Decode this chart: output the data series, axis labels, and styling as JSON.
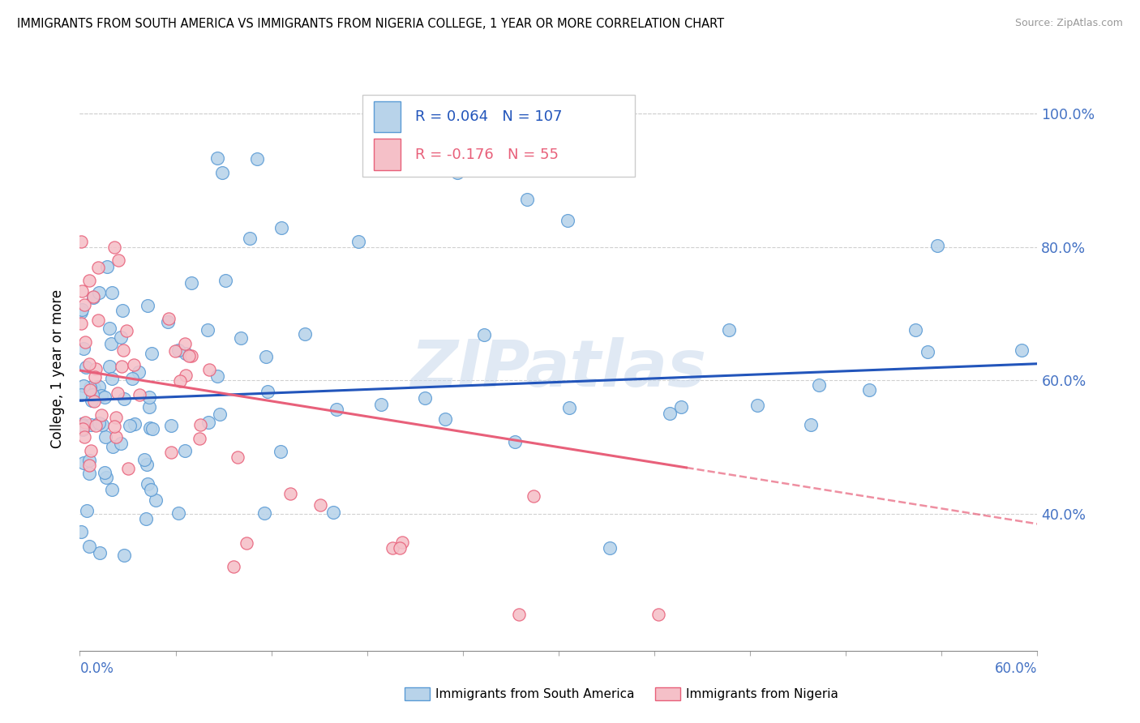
{
  "title": "IMMIGRANTS FROM SOUTH AMERICA VS IMMIGRANTS FROM NIGERIA COLLEGE, 1 YEAR OR MORE CORRELATION CHART",
  "source": "Source: ZipAtlas.com",
  "ylabel": "College, 1 year or more",
  "xmin": 0.0,
  "xmax": 0.6,
  "ymin": 0.195,
  "ymax": 1.04,
  "watermark": "ZIPatlas",
  "ytick_vals": [
    0.4,
    0.6,
    0.8,
    1.0
  ],
  "ytick_labels": [
    "40.0%",
    "60.0%",
    "80.0%",
    "100.0%"
  ],
  "series": [
    {
      "label": "Immigrants from South America",
      "color": "#b8d3ea",
      "edge_color": "#5b9bd5",
      "N": 107,
      "R": 0.064,
      "line_color": "#2255bb",
      "line_style": "solid",
      "trend_x0": 0.0,
      "trend_x1": 0.6,
      "trend_y0": 0.57,
      "trend_y1": 0.625
    },
    {
      "label": "Immigrants from Nigeria",
      "color": "#f5c0c8",
      "edge_color": "#e8607a",
      "N": 55,
      "R": -0.176,
      "line_color": "#e8607a",
      "line_style": "dashed",
      "trend_x0": 0.0,
      "trend_x1": 0.6,
      "trend_y0": 0.615,
      "trend_y1": 0.385
    }
  ],
  "legend": {
    "R_blue": "0.064",
    "N_blue": "107",
    "R_pink": "-0.176",
    "N_pink": "55"
  },
  "title_fontsize": 10.5,
  "axis_label_color": "#4472c4",
  "tick_color": "#4472c4",
  "grid_color": "#d0d0d0"
}
